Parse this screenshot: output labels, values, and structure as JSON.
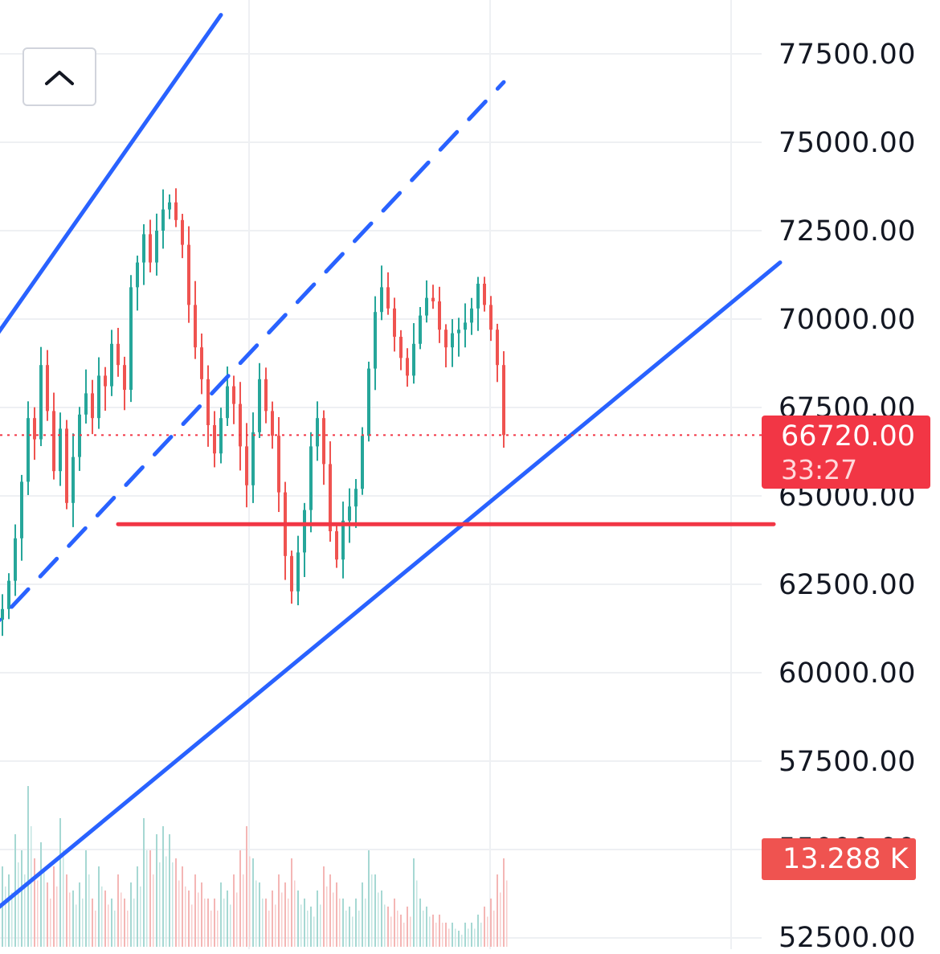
{
  "colors": {
    "up": "#26a69a",
    "down": "#ef5350",
    "channel": "#2962ff",
    "support": "#f23645",
    "grid": "#eef0f3",
    "background": "#ffffff"
  },
  "collapse_button": {
    "icon": "chevron-up-icon"
  },
  "price_axis": {
    "labels": [
      "77500.00",
      "75000.00",
      "72500.00",
      "70000.00",
      "67500.00",
      "65000.00",
      "62500.00",
      "60000.00",
      "57500.00",
      "55000.00",
      "52500.00"
    ]
  },
  "last_price": {
    "value": "66720.00",
    "countdown": "33:27"
  },
  "volume": {
    "value": "13.288 K"
  },
  "chart_data": {
    "type": "candlestick",
    "symbol": "",
    "ylim": [
      52250,
      78600
    ],
    "y_ticks": [
      77500,
      75000,
      72500,
      70000,
      67500,
      65000,
      62500,
      60000,
      57500,
      55000,
      52500
    ],
    "last_close": 66720,
    "candles": {
      "note": "approximate OHLC sequence read from the visible price path",
      "close_path": [
        61800,
        62600,
        63800,
        65400,
        67200,
        66600,
        68700,
        67400,
        65700,
        66900,
        64800,
        66100,
        67300,
        67900,
        67200,
        68400,
        68100,
        69300,
        68700,
        68000,
        70900,
        71600,
        72400,
        71600,
        72500,
        73100,
        73300,
        72800,
        72100,
        70400,
        69200,
        68300,
        67000,
        66200,
        67200,
        68100,
        67600,
        66400,
        65300,
        66800,
        68300,
        67400,
        66700,
        65100,
        63300,
        62300,
        63400,
        64600,
        66400,
        67200,
        65900,
        64000,
        63200,
        64300,
        64700,
        65200,
        66700,
        68600,
        70200,
        70900,
        70300,
        69500,
        68900,
        68400,
        69300,
        70100,
        70600,
        70500,
        69700,
        69200,
        69600,
        69700,
        69900,
        70300,
        71000,
        70400,
        69700,
        68700,
        66720
      ],
      "volume_relative": [
        0.5,
        0.45,
        0.7,
        0.6,
        1.0,
        0.55,
        0.65,
        0.4,
        0.5,
        0.8,
        0.45,
        0.35,
        0.4,
        0.6,
        0.3,
        0.5,
        0.35,
        0.3,
        0.45,
        0.3,
        0.4,
        0.5,
        0.8,
        0.6,
        0.7,
        0.75,
        0.7,
        0.55,
        0.5,
        0.35,
        0.45,
        0.4,
        0.3,
        0.3,
        0.4,
        0.35,
        0.45,
        0.6,
        0.75,
        0.55,
        0.4,
        0.3,
        0.35,
        0.45,
        0.4,
        0.55,
        0.35,
        0.3,
        0.25,
        0.35,
        0.5,
        0.45,
        0.4,
        0.3,
        0.25,
        0.3,
        0.4,
        0.6,
        0.45,
        0.35,
        0.25,
        0.3,
        0.2,
        0.25,
        0.55,
        0.3,
        0.25,
        0.2,
        0.2,
        0.15,
        0.15,
        0.1,
        0.15,
        0.15,
        0.2,
        0.25,
        0.3,
        0.45,
        0.55
      ]
    },
    "drawings": [
      {
        "name": "channel-upper-line",
        "style": "solid",
        "from": [
          -3,
          69000
        ],
        "to": [
          34,
          78600
        ]
      },
      {
        "name": "channel-mid-line",
        "style": "dashed",
        "from": [
          -3,
          61000
        ],
        "to": [
          78,
          76700
        ]
      },
      {
        "name": "channel-lower-line",
        "style": "solid",
        "from": [
          -3,
          53000
        ],
        "to": [
          121,
          71600
        ]
      },
      {
        "name": "support-line",
        "style": "solid",
        "color": "red",
        "from": [
          18,
          64200
        ],
        "to": [
          120,
          64200
        ]
      }
    ],
    "last_price_line": {
      "value": 66720,
      "style": "dotted"
    }
  }
}
